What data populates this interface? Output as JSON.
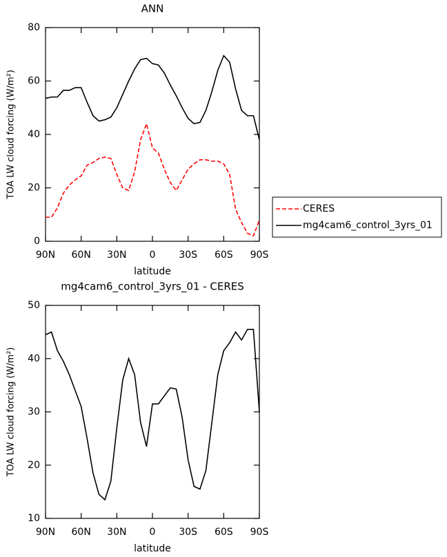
{
  "chart_data": [
    {
      "type": "line",
      "title": "ANN",
      "xlabel": "latitude",
      "ylabel": "TOA LW cloud forcing (W/m²)",
      "x": [
        90,
        85,
        80,
        75,
        70,
        65,
        60,
        55,
        50,
        45,
        40,
        35,
        30,
        25,
        20,
        15,
        10,
        5,
        0,
        -5,
        -10,
        -15,
        -20,
        -25,
        -30,
        -35,
        -40,
        -45,
        -50,
        -55,
        -60,
        -65,
        -70,
        -75,
        -80,
        -85,
        -90
      ],
      "series": [
        {
          "name": "CERES",
          "color": "#ff0000",
          "line_style": "dashed",
          "values": [
            9,
            9,
            12.5,
            18,
            21,
            23,
            24.5,
            28.5,
            29.5,
            31,
            31.5,
            31,
            25,
            20,
            19,
            26,
            38,
            44,
            35,
            33,
            27,
            22,
            19,
            23,
            27,
            29,
            30.5,
            30.5,
            30,
            30,
            29,
            25,
            12,
            7,
            3,
            2,
            8
          ]
        },
        {
          "name": "mg4cam6_control_3yrs_01",
          "color": "#000000",
          "line_style": "solid",
          "values": [
            53.5,
            54,
            54,
            56.5,
            56.5,
            57.5,
            57.5,
            52,
            47,
            45,
            45.5,
            46.5,
            50,
            55,
            60,
            64.5,
            68,
            68.5,
            66.5,
            66,
            63,
            58.5,
            54.5,
            50,
            46,
            44,
            44.5,
            49,
            56,
            64,
            69.5,
            67,
            57,
            49,
            47,
            47,
            38
          ]
        }
      ],
      "xlim": [
        90,
        -90
      ],
      "xticks": [
        {
          "value": 90,
          "label": "90N"
        },
        {
          "value": 60,
          "label": "60N"
        },
        {
          "value": 30,
          "label": "30N"
        },
        0,
        {
          "value": -30,
          "label": "30S"
        },
        {
          "value": -60,
          "label": "60S"
        },
        {
          "value": -90,
          "label": "90S"
        }
      ],
      "ylim": [
        0,
        80
      ],
      "yticks": [
        0,
        20,
        40,
        60,
        80
      ],
      "legend": "right"
    },
    {
      "type": "line",
      "title": "mg4cam6_control_3yrs_01 - CERES",
      "xlabel": "latitude",
      "ylabel": "TOA LW cloud forcing (W/m²)",
      "x": [
        90,
        85,
        80,
        75,
        70,
        65,
        60,
        55,
        50,
        45,
        40,
        35,
        30,
        25,
        20,
        15,
        10,
        5,
        0,
        -5,
        -10,
        -15,
        -20,
        -25,
        -30,
        -35,
        -40,
        -45,
        -50,
        -55,
        -60,
        -65,
        -70,
        -75,
        -80,
        -85,
        -90
      ],
      "series": [
        {
          "color": "#000000",
          "line_style": "solid",
          "values": [
            44.5,
            45,
            41.5,
            39.5,
            37,
            34,
            31,
            25,
            18.5,
            14.5,
            13.5,
            17,
            27,
            36,
            40,
            37,
            28,
            23.5,
            31.5,
            31.5,
            33,
            34.5,
            34.3,
            29,
            21,
            16,
            15.5,
            19,
            28,
            37,
            41.5,
            43,
            45,
            43.5,
            45.5,
            45.5,
            30
          ]
        }
      ],
      "xlim": [
        90,
        -90
      ],
      "xticks": [
        {
          "value": 90,
          "label": "90N"
        },
        {
          "value": 60,
          "label": "60N"
        },
        {
          "value": 30,
          "label": "30N"
        },
        0,
        {
          "value": -30,
          "label": "30S"
        },
        {
          "value": -60,
          "label": "60S"
        },
        {
          "value": -90,
          "label": "90S"
        }
      ],
      "ylim": [
        10,
        50
      ],
      "yticks": [
        10,
        20,
        30,
        40,
        50
      ]
    }
  ]
}
